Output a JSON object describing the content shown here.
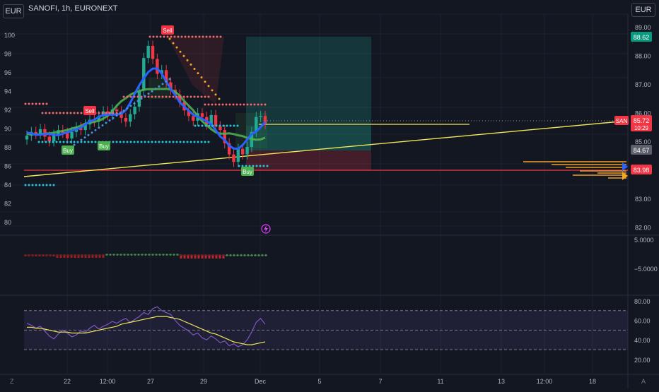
{
  "top": {
    "left_currency": "EUR",
    "right_currency": "EUR",
    "symbol_title": "SANOFI, 1h, EURONEXT"
  },
  "colors": {
    "bg": "#131722",
    "up": "#22ab94",
    "down": "#f23645",
    "grid": "#1e222d",
    "yellow": "#f1e75a",
    "blue": "#2962ff",
    "green": "#4caf50",
    "cyan": "#26c6da",
    "purple": "#7e57c2"
  },
  "chart_data": {
    "type": "line",
    "symbol": "SANOFI",
    "interval": "1h",
    "exchange": "EURONEXT",
    "left_axis_ticks": [
      "100",
      "98",
      "96",
      "94",
      "92",
      "90",
      "88",
      "86",
      "84",
      "82",
      "80"
    ],
    "right_axis_ticks": [
      "89.00",
      "88.00",
      "87.00",
      "86.00",
      "85.00",
      "84.00",
      "83.00",
      "82.00"
    ],
    "x_tick_labels": [
      "22",
      "12:00",
      "27",
      "29",
      "Dec",
      "5",
      "7",
      "11",
      "13",
      "12:00",
      "18"
    ],
    "price_labels": [
      {
        "name": "target",
        "value": "88.62"
      },
      {
        "name": "last",
        "symbol_tag": "SAN",
        "value": "85.72",
        "countdown": "10:29"
      },
      {
        "name": "level",
        "value": "84.67"
      },
      {
        "name": "support",
        "value": "83.98"
      }
    ],
    "close_series": [
      89.2,
      89.6,
      89.4,
      89.9,
      89.1,
      88.6,
      89.3,
      89.8,
      89.5,
      88.9,
      89.6,
      90.1,
      89.8,
      90.4,
      90.9,
      90.7,
      91.3,
      91.8,
      91.4,
      92.0,
      91.8,
      91.1,
      90.7,
      91.5,
      92.3,
      94.0,
      97.5,
      98.8,
      97.4,
      95.8,
      96.2,
      94.9,
      94.1,
      93.6,
      92.8,
      91.9,
      91.3,
      90.8,
      91.6,
      91.2,
      90.4,
      91.4,
      90.2,
      89.8,
      88.4,
      87.2,
      86.4,
      87.8,
      87.2,
      88.0,
      89.6,
      91.2,
      91.3,
      90.5
    ],
    "signals": [
      {
        "label": "Sell",
        "type": "sell"
      },
      {
        "label": "Sell",
        "type": "sell"
      },
      {
        "label": "Buy",
        "type": "buy"
      },
      {
        "label": "Buy",
        "type": "buy"
      },
      {
        "label": "Buy",
        "type": "buy"
      }
    ],
    "oscillator": {
      "ticks": [
        "5.0000",
        "−5.0000"
      ]
    },
    "rsi": {
      "ticks": [
        "80.00",
        "60.00",
        "40.00",
        "20.00"
      ],
      "upper_band": 70,
      "lower_band": 30,
      "values": [
        57,
        55,
        52,
        54,
        49,
        44,
        41,
        46,
        50,
        47,
        43,
        45,
        49,
        48,
        52,
        55,
        51,
        54,
        56,
        59,
        57,
        60,
        62,
        58,
        61,
        64,
        68,
        66,
        72,
        74,
        70,
        68,
        66,
        60,
        55,
        52,
        49,
        45,
        47,
        42,
        40,
        44,
        41,
        37,
        39,
        34,
        36,
        33,
        35,
        40,
        48,
        58,
        62,
        56
      ],
      "ma": [
        53,
        53,
        52,
        52,
        51,
        50,
        49,
        48,
        48,
        48,
        47,
        47,
        47,
        47,
        48,
        49,
        50,
        51,
        52,
        53,
        54,
        56,
        57,
        58,
        59,
        60,
        61,
        62,
        63,
        64,
        64,
        64,
        63,
        62,
        61,
        59,
        57,
        55,
        53,
        51,
        49,
        47,
        46,
        44,
        42,
        40,
        38,
        37,
        36,
        35,
        35,
        36,
        37,
        38
      ]
    }
  },
  "icon_names": [
    "flash-icon",
    "zoom-icon",
    "auto-scale-icon",
    "projection-arrows-icon"
  ],
  "axis_corner": {
    "left": "Z",
    "right": "A"
  }
}
